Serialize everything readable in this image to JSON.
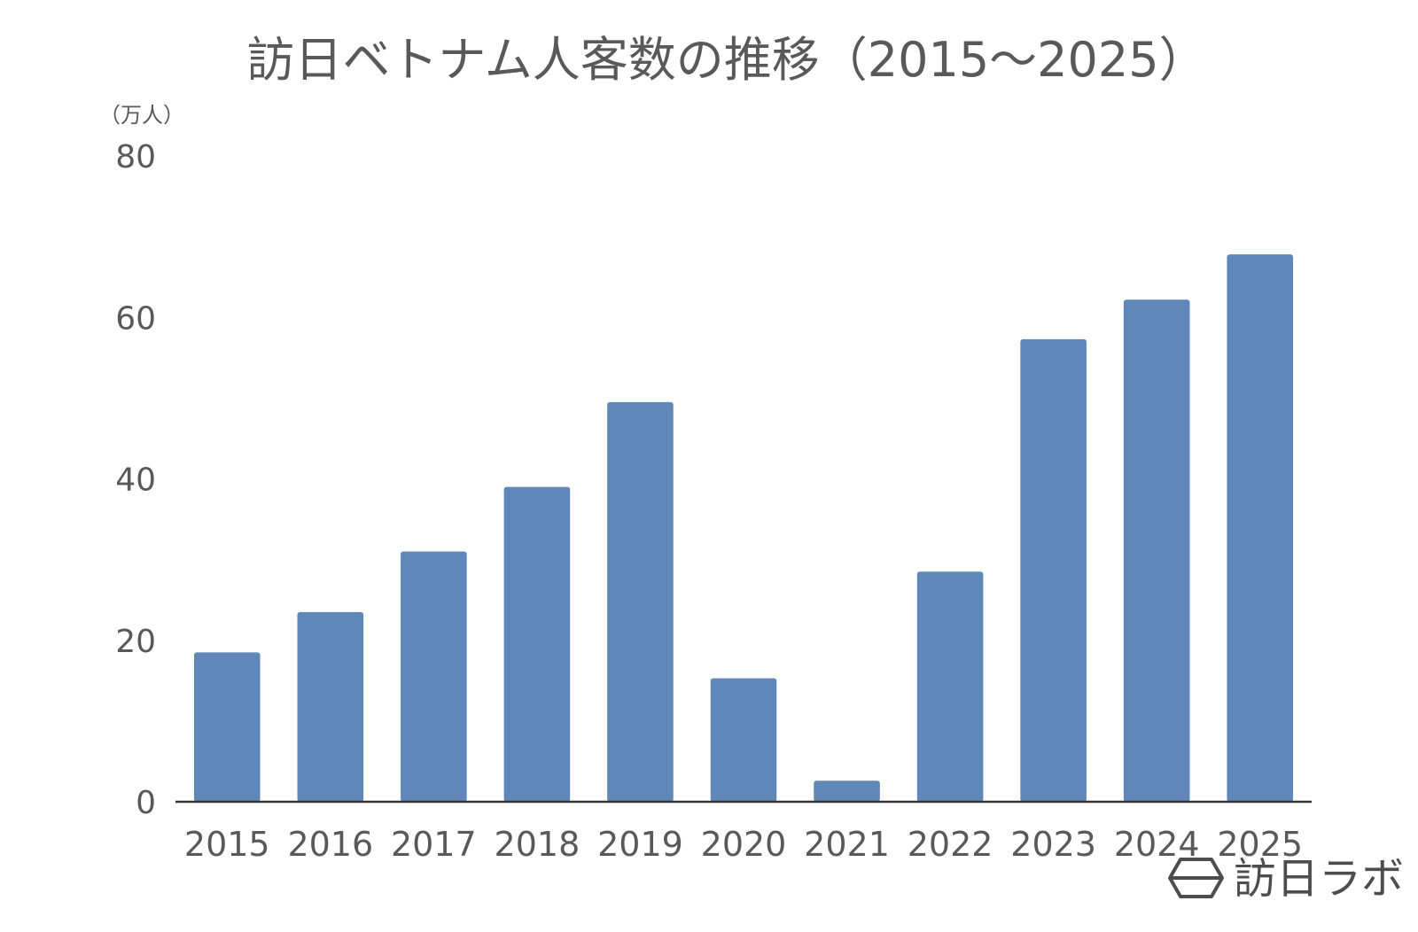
{
  "chart_data": {
    "type": "bar",
    "title": "訪日ベトナム人客数の推移（2015〜2025）",
    "ylabel": "（万人）",
    "xlabel": "",
    "categories": [
      "2015",
      "2016",
      "2017",
      "2018",
      "2019",
      "2020",
      "2021",
      "2022",
      "2023",
      "2024",
      "2025"
    ],
    "values": [
      18.5,
      23.5,
      31.0,
      39.0,
      49.5,
      15.3,
      2.6,
      28.5,
      57.3,
      62.2,
      67.8
    ],
    "ylim": [
      0,
      80
    ],
    "yticks": [
      "0",
      "20",
      "40",
      "60",
      "80"
    ],
    "grid": false,
    "legend": "none",
    "bar_color": "#5f87b9",
    "axis_color": "#333333"
  },
  "branding": {
    "logo_icon": "hexagon-logo-icon",
    "text": "訪日ラボ"
  }
}
